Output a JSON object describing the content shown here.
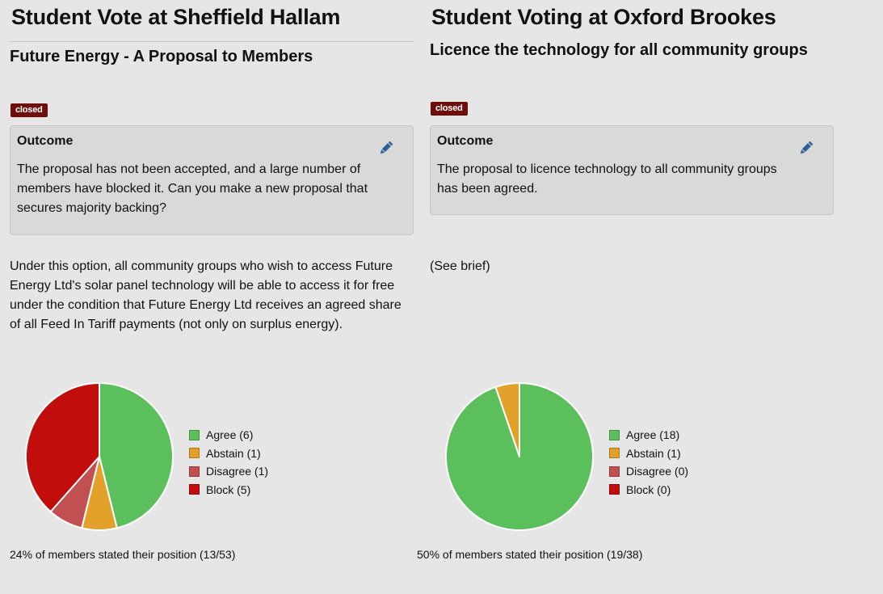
{
  "left": {
    "title": "Student Vote at Sheffield Hallam",
    "proposal_title": "Future Energy - A Proposal to Members",
    "status_badge": "closed",
    "outcome": {
      "heading": "Outcome",
      "text": "The proposal has not been accepted, and a large number of members have blocked it. Can you make a new proposal that secures majority backing?",
      "edit_icon": "pencil-icon"
    },
    "description": "Under this option, all community groups who wish to access Future Energy Ltd's solar panel technology will be able to access it for free under the condition that Future Energy Ltd receives an agreed share of all Feed In Tariff payments (not only on surplus energy).",
    "legend": [
      "Agree (6)",
      "Abstain (1)",
      "Disagree (1)",
      "Block (5)"
    ],
    "stat": "24% of members stated their position (13/53)"
  },
  "right": {
    "title": "Student Voting at Oxford Brookes",
    "proposal_title": "Licence the technology for all community groups",
    "status_badge": "closed",
    "outcome": {
      "heading": "Outcome",
      "text": "The proposal to licence technology to all community groups has been agreed.",
      "edit_icon": "pencil-icon"
    },
    "description": "(See brief)",
    "legend": [
      "Agree (18)",
      "Abstain (1)",
      "Disagree (0)",
      "Block (0)"
    ],
    "stat": "50% of members stated their position (19/38)"
  },
  "chart_data": [
    {
      "type": "pie",
      "categories": [
        "Agree",
        "Abstain",
        "Disagree",
        "Block"
      ],
      "values": [
        6,
        1,
        1,
        5
      ],
      "colors": [
        "#5bbf5b",
        "#e2a12a",
        "#c24f52",
        "#c20d0d"
      ]
    },
    {
      "type": "pie",
      "categories": [
        "Agree",
        "Abstain",
        "Disagree",
        "Block"
      ],
      "values": [
        18,
        1,
        0,
        0
      ],
      "colors": [
        "#5bbf5b",
        "#e2a12a",
        "#c24f52",
        "#c20d0d"
      ]
    }
  ]
}
